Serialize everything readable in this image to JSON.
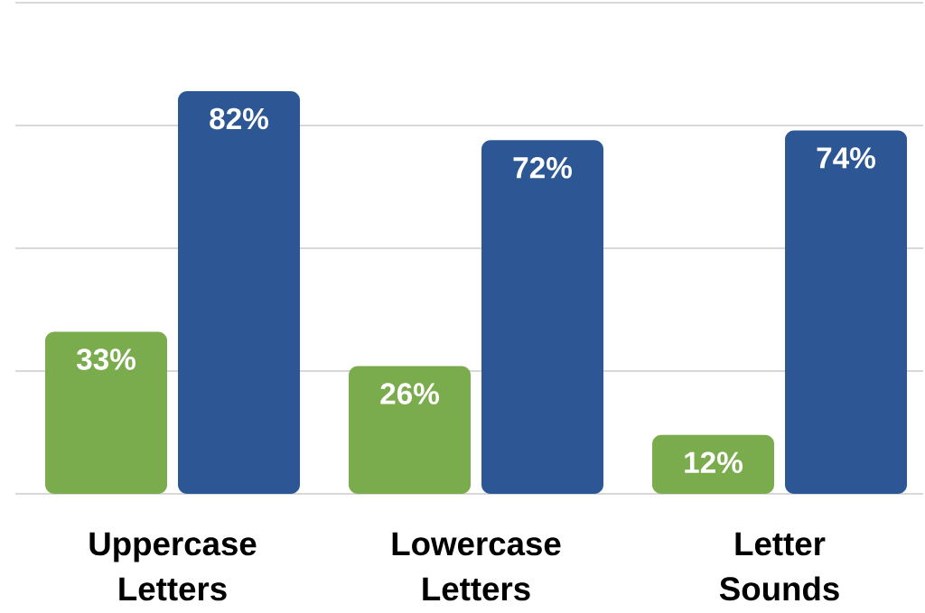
{
  "chart_data": {
    "type": "bar",
    "categories": [
      "Uppercase Letters",
      "Lowercase Letters",
      "Letter Sounds"
    ],
    "series": [
      {
        "color": "#7aab4d",
        "values": [
          33,
          26,
          12
        ],
        "value_labels": [
          "33%",
          "26%",
          "12%"
        ]
      },
      {
        "color": "#2c5794",
        "values": [
          82,
          72,
          74
        ],
        "value_labels": [
          "82%",
          "72%",
          "74%"
        ]
      }
    ],
    "ylim": [
      0,
      100
    ],
    "yticks": [
      {
        "value": 0,
        "label": null
      },
      {
        "value": 25,
        "label": null
      },
      {
        "value": 50,
        "label": null
      },
      {
        "value": 75,
        "label": null
      },
      {
        "value": 100,
        "label": null
      }
    ],
    "grid": "y",
    "tick_labels": "x"
  }
}
